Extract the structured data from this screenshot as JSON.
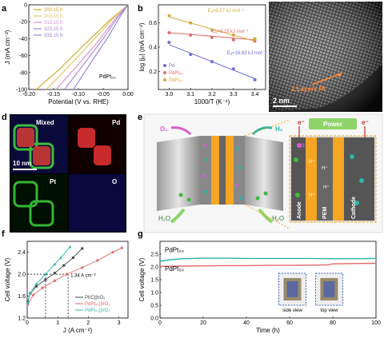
{
  "panels": {
    "a": "a",
    "b": "b",
    "c": "c",
    "d": "d",
    "e": "e",
    "f": "f",
    "g": "g"
  },
  "chart_data": [
    {
      "panel": "a",
      "type": "line",
      "xlabel": "Potential (V vs. RHE)",
      "ylabel": "J (mA cm⁻²)",
      "xlim": [
        -0.2,
        0.0
      ],
      "ylim": [
        -100,
        0
      ],
      "xticks": [
        "-0.20",
        "-0.15",
        "-0.10",
        "-0.05",
        "0.00"
      ],
      "yticks": [
        "0",
        "-20",
        "-40",
        "-60",
        "-80",
        "-100"
      ],
      "annotation": "PdPt₂₀",
      "series": [
        {
          "name": "293.15 K",
          "color": "#c9a820",
          "points": [
            [
              -0.185,
              -100
            ],
            [
              -0.14,
              -77
            ],
            [
              -0.09,
              -48
            ],
            [
              -0.04,
              -20
            ],
            [
              0.0,
              0
            ]
          ]
        },
        {
          "name": "303.15 K",
          "color": "#e3c35a",
          "points": [
            [
              -0.165,
              -100
            ],
            [
              -0.12,
              -73
            ],
            [
              -0.075,
              -45
            ],
            [
              -0.03,
              -16
            ],
            [
              0.0,
              0
            ]
          ]
        },
        {
          "name": "313.15 K",
          "color": "#d78cd6",
          "points": [
            [
              -0.145,
              -100
            ],
            [
              -0.1,
              -70
            ],
            [
              -0.06,
              -43
            ],
            [
              -0.025,
              -16
            ],
            [
              0.0,
              0
            ]
          ]
        },
        {
          "name": "323.15 K",
          "color": "#a986d8",
          "points": [
            [
              -0.128,
              -100
            ],
            [
              -0.085,
              -67
            ],
            [
              -0.05,
              -40
            ],
            [
              -0.02,
              -14
            ],
            [
              0.0,
              0
            ]
          ]
        },
        {
          "name": "333.15 K",
          "color": "#8e7fd4",
          "points": [
            [
              -0.11,
              -100
            ],
            [
              -0.07,
              -64
            ],
            [
              -0.04,
              -38
            ],
            [
              -0.015,
              -13
            ],
            [
              0.0,
              0
            ]
          ]
        }
      ]
    },
    {
      "panel": "b",
      "type": "scatter",
      "xlabel": "1000/T (K⁻¹)",
      "ylabel": "log |j₀| (mA cm⁻²)",
      "xlim": [
        2.95,
        3.45
      ],
      "ylim": [
        0.05,
        0.75
      ],
      "xticks": [
        "3.0",
        "3.1",
        "3.2",
        "3.3",
        "3.4"
      ],
      "yticks": [
        "0.2",
        "0.4",
        "0.6"
      ],
      "annotations": [
        "Eₐ=8.57 kJ mol⁻¹",
        "Eₐ=3.19 kJ mol⁻¹",
        "Eₐ=16.83 kJ mol⁻¹"
      ],
      "series": [
        {
          "name": "Pd",
          "color": "#6f6fd8",
          "x": [
            3.0,
            3.1,
            3.2,
            3.3,
            3.4
          ],
          "y": [
            0.44,
            0.34,
            0.28,
            0.22,
            0.13
          ],
          "fit": [
            [
              3.0,
              0.42
            ],
            [
              3.4,
              0.14
            ]
          ]
        },
        {
          "name": "PdPt₅₀",
          "color": "#e06a6a",
          "x": [
            3.0,
            3.1,
            3.2,
            3.3,
            3.4
          ],
          "y": [
            0.52,
            0.5,
            0.48,
            0.46,
            0.45
          ],
          "fit": [
            [
              3.0,
              0.52
            ],
            [
              3.4,
              0.46
            ]
          ]
        },
        {
          "name": "PdPt₂₀",
          "color": "#d8a93a",
          "x": [
            3.0,
            3.1,
            3.2,
            3.3,
            3.4
          ],
          "y": [
            0.66,
            0.6,
            0.54,
            0.5,
            0.47
          ],
          "fit": [
            [
              3.0,
              0.65
            ],
            [
              3.4,
              0.45
            ]
          ]
        }
      ]
    },
    {
      "panel": "f",
      "type": "line",
      "xlabel": "J (A cm⁻²)",
      "ylabel": "Cell voltage (V)",
      "xlim": [
        0,
        3.3
      ],
      "ylim": [
        1.2,
        2.6
      ],
      "xticks": [
        "0",
        "1",
        "2",
        "3"
      ],
      "yticks": [
        "1.2",
        "1.6",
        "2.0",
        "2.4"
      ],
      "annotation": "1.34 A cm⁻²",
      "series": [
        {
          "name": "Pt/C||IrO₂",
          "color": "#444",
          "marker": "square",
          "x": [
            0.02,
            0.1,
            0.3,
            0.6,
            0.9,
            1.2,
            1.5,
            1.8
          ],
          "y": [
            1.5,
            1.65,
            1.78,
            1.9,
            2.02,
            2.16,
            2.3,
            2.47
          ]
        },
        {
          "name": "PdPt₅₀||IrO₂",
          "color": "#e06a6a",
          "marker": "circle",
          "x": [
            0.02,
            0.2,
            0.5,
            0.9,
            1.3,
            1.8,
            2.3,
            2.8,
            3.1
          ],
          "y": [
            1.45,
            1.62,
            1.75,
            1.88,
            2.0,
            2.12,
            2.25,
            2.4,
            2.48
          ]
        },
        {
          "name": "PdPt₂₀||IrO₂",
          "color": "#2bb5a5",
          "marker": "triangle",
          "x": [
            0.02,
            0.1,
            0.3,
            0.6,
            0.9,
            1.1,
            1.4
          ],
          "y": [
            1.48,
            1.65,
            1.82,
            2.0,
            2.18,
            2.3,
            2.5
          ]
        }
      ]
    },
    {
      "panel": "g",
      "type": "line",
      "xlabel": "Time (h)",
      "ylabel": "Cell voltage (V)",
      "xlim": [
        0,
        100
      ],
      "ylim": [
        0,
        3
      ],
      "xticks": [
        "0",
        "20",
        "40",
        "60",
        "80",
        "100"
      ],
      "yticks": [
        "0.0",
        "0.5",
        "1.0",
        "1.5",
        "2.0",
        "2.5"
      ],
      "series": [
        {
          "name": "PdPt₂₀",
          "color": "#2bb5a5",
          "x": [
            0,
            5,
            10,
            20,
            30,
            40,
            50,
            60,
            70,
            80,
            90,
            100
          ],
          "y": [
            2.22,
            2.28,
            2.32,
            2.34,
            2.34,
            2.33,
            2.33,
            2.33,
            2.33,
            2.32,
            2.32,
            2.33
          ]
        },
        {
          "name": "PdPt₅₀",
          "color": "#e06a6a",
          "x": [
            0,
            10,
            20,
            30,
            40,
            50,
            60,
            70,
            78,
            80,
            90,
            100
          ],
          "y": [
            2.02,
            2.03,
            2.04,
            2.05,
            2.05,
            2.06,
            2.06,
            2.07,
            2.08,
            2.12,
            2.13,
            2.14
          ]
        }
      ],
      "inset_labels": [
        "side view",
        "top view"
      ]
    }
  ],
  "image_c": {
    "scalebar": "2 nm",
    "label": "2 Layers Pt"
  },
  "image_d": {
    "scalebar": "10 nm",
    "labels": [
      "Mixed",
      "Pd",
      "Pt",
      "O"
    ]
  },
  "diagram_e": {
    "labels": {
      "power": "Power",
      "e1": "e⁻",
      "e2": "e⁻",
      "o2": "O₂",
      "h2": "H₂",
      "h2o_l": "H₂O",
      "h2o_r": "H₂O",
      "anode": "Anode",
      "catalyst1": "Catalyst",
      "pem": "PEM",
      "catalyst2": "Catalyst",
      "cathode": "Cathode",
      "hplus": "H⁺"
    }
  }
}
